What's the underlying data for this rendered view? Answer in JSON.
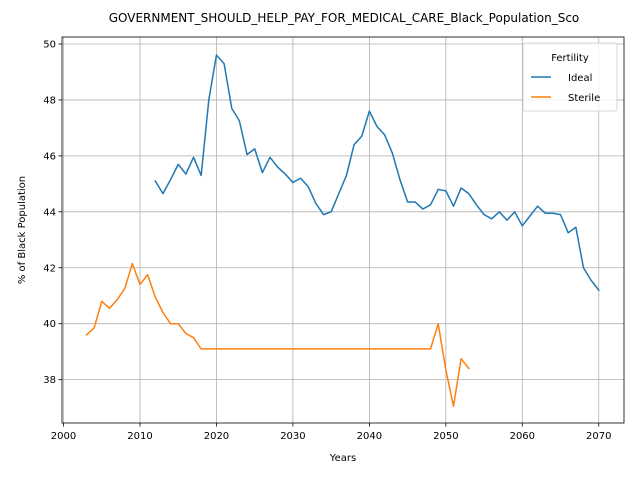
{
  "chart_data": {
    "type": "line",
    "title": "GOVERNMENT_SHOULD_HELP_PAY_FOR_MEDICAL_CARE_Black_Population_Sco",
    "xlabel": "Years",
    "ylabel": "% of Black Population",
    "xlim": [
      1999.8,
      2073.3
    ],
    "ylim": [
      36.45,
      50.25
    ],
    "xticks": [
      2000,
      2010,
      2020,
      2030,
      2040,
      2050,
      2060,
      2070
    ],
    "yticks": [
      38,
      40,
      42,
      44,
      46,
      48,
      50
    ],
    "grid": true,
    "legend": {
      "title": "Fertility",
      "placement": "top-right"
    },
    "series": [
      {
        "name": "Ideal",
        "color": "#1f77b4",
        "x": [
          2012,
          2013,
          2014,
          2015,
          2016,
          2017,
          2018,
          2019,
          2020,
          2021,
          2022,
          2023,
          2024,
          2025,
          2026,
          2027,
          2028,
          2029,
          2030,
          2031,
          2032,
          2033,
          2034,
          2035,
          2036,
          2037,
          2038,
          2039,
          2040,
          2041,
          2042,
          2043,
          2044,
          2045,
          2046,
          2047,
          2048,
          2049,
          2050,
          2051,
          2052,
          2053,
          2054,
          2055,
          2056,
          2057,
          2058,
          2059,
          2060,
          2061,
          2062,
          2063,
          2064,
          2065,
          2066,
          2067,
          2068,
          2069,
          2070
        ],
        "y": [
          45.1,
          44.65,
          45.15,
          45.7,
          45.35,
          45.95,
          45.3,
          48.0,
          49.6,
          49.3,
          47.7,
          47.25,
          46.05,
          46.25,
          45.4,
          45.95,
          45.6,
          45.35,
          45.05,
          45.2,
          44.9,
          44.3,
          43.9,
          44.0,
          44.65,
          45.3,
          46.4,
          46.7,
          47.6,
          47.05,
          46.75,
          46.1,
          45.15,
          44.35,
          44.35,
          44.1,
          44.25,
          44.8,
          44.75,
          44.2,
          44.85,
          44.65,
          44.25,
          43.9,
          43.75,
          44.0,
          43.7,
          44.0,
          43.5,
          43.85,
          44.2,
          43.95,
          43.95,
          43.9,
          43.25,
          43.45,
          42.0,
          41.55,
          41.2
        ]
      },
      {
        "name": "Sterile",
        "color": "#ff7f0e",
        "x": [
          2003,
          2004,
          2005,
          2006,
          2007,
          2008,
          2009,
          2010,
          2011,
          2012,
          2013,
          2014,
          2015,
          2016,
          2017,
          2018,
          2019,
          2020,
          2021,
          2022,
          2023,
          2024,
          2025,
          2026,
          2027,
          2028,
          2029,
          2030,
          2031,
          2032,
          2033,
          2034,
          2035,
          2036,
          2037,
          2038,
          2039,
          2040,
          2041,
          2042,
          2043,
          2044,
          2045,
          2046,
          2047,
          2048,
          2049,
          2050,
          2051,
          2052,
          2053
        ],
        "y": [
          39.6,
          39.85,
          40.8,
          40.55,
          40.85,
          41.25,
          42.15,
          41.4,
          41.75,
          40.95,
          40.4,
          40.0,
          40.0,
          39.65,
          39.5,
          39.1,
          39.1,
          39.1,
          39.1,
          39.1,
          39.1,
          39.1,
          39.1,
          39.1,
          39.1,
          39.1,
          39.1,
          39.1,
          39.1,
          39.1,
          39.1,
          39.1,
          39.1,
          39.1,
          39.1,
          39.1,
          39.1,
          39.1,
          39.1,
          39.1,
          39.1,
          39.1,
          39.1,
          39.1,
          39.1,
          39.1,
          40.0,
          38.35,
          37.05,
          38.75,
          38.4
        ]
      }
    ]
  }
}
